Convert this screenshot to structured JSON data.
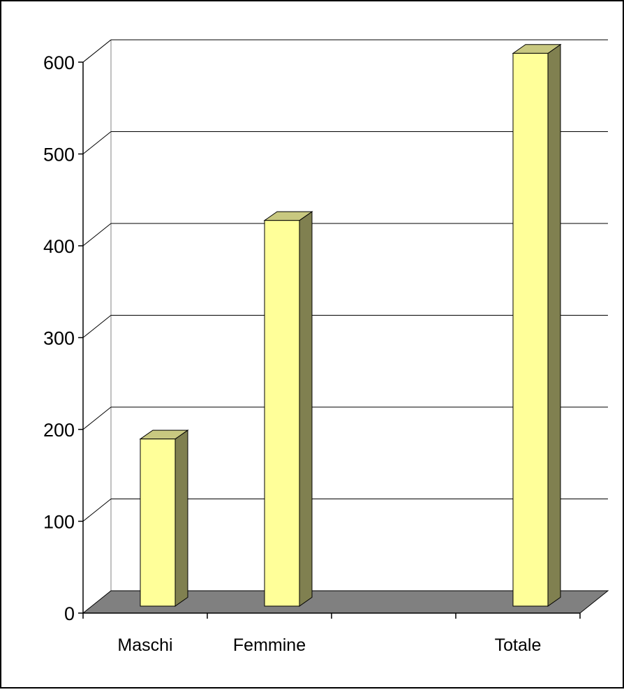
{
  "chart_data": {
    "type": "bar",
    "categories": [
      "Maschi",
      "Femmine",
      "",
      "Totale"
    ],
    "values": [
      182,
      420,
      null,
      602
    ],
    "ylim": [
      0,
      600
    ],
    "yticks": [
      0,
      100,
      200,
      300,
      400,
      500,
      600
    ],
    "grid": true,
    "style": "3d-columns",
    "colors": {
      "bar_front": "#ffff99",
      "bar_side": "#808050",
      "bar_top": "#c8c880",
      "floor": "#808080",
      "gridline": "#000000",
      "back_wall_edge": "#808080"
    }
  }
}
